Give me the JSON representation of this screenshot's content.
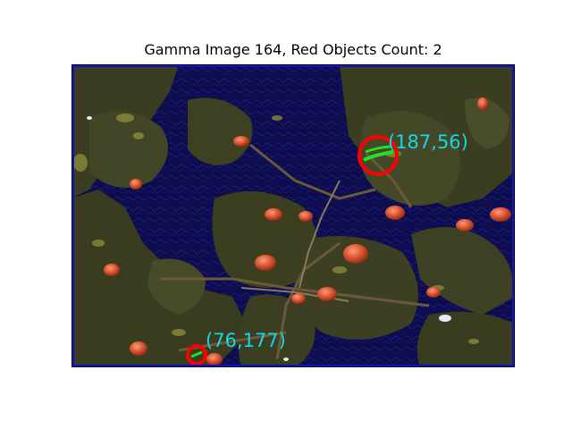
{
  "figure": {
    "title": "Gamma Image 164, Red Objects Count: 2"
  },
  "detections": [
    {
      "label": "(187,56)"
    },
    {
      "label": "(76,177)"
    }
  ],
  "colors": {
    "background": "#0c0c4e",
    "detection_circle": "#ff0000",
    "detection_mark": "#22e022",
    "coordinate_text": "#16d6e6",
    "image_border": "#1010c8"
  }
}
